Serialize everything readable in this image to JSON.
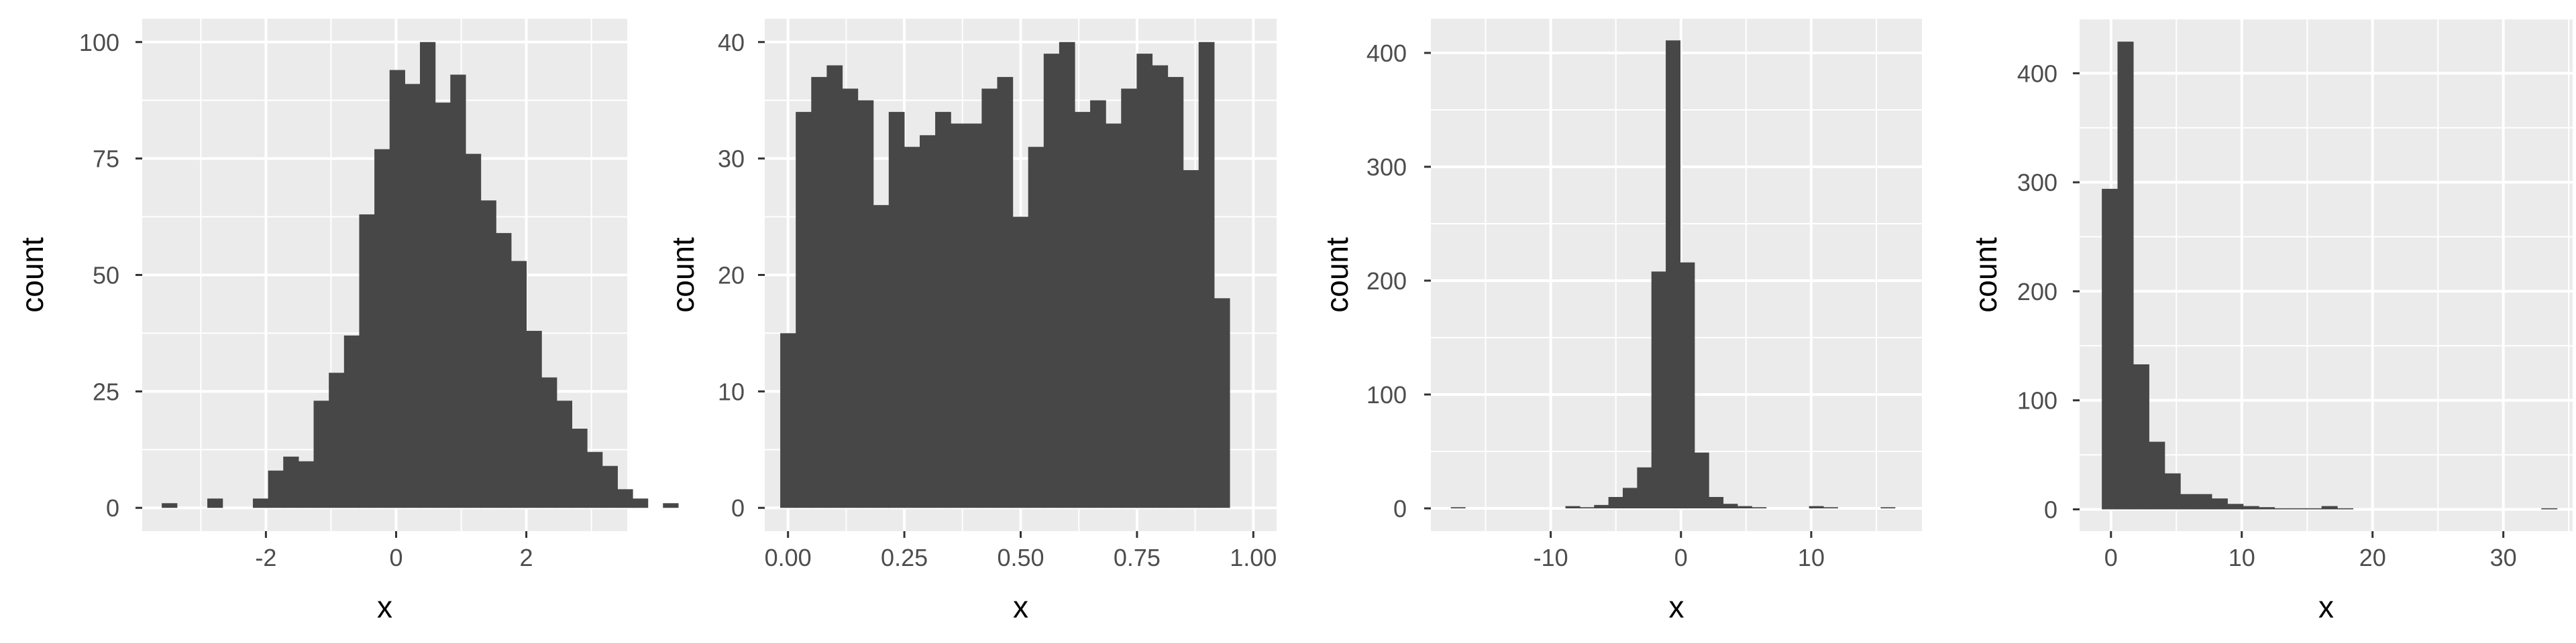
{
  "chart_data": [
    {
      "type": "bar",
      "title": "",
      "xlabel": "x",
      "ylabel": "count",
      "xlim": [
        -3.9,
        3.55
      ],
      "ylim": [
        -5,
        105
      ],
      "xticks": [
        -2,
        0,
        2
      ],
      "xtick_labels": [
        "-2",
        "0",
        "2"
      ],
      "yticks": [
        0,
        25,
        50,
        75,
        100
      ],
      "ytick_labels": [
        "0",
        "25",
        "50",
        "75",
        "100"
      ],
      "bins": {
        "start": -3.6,
        "width": 0.2333
      },
      "values": [
        1,
        0,
        0,
        2,
        0,
        0,
        2,
        8,
        11,
        10,
        23,
        29,
        37,
        63,
        77,
        94,
        91,
        100,
        87,
        93,
        76,
        66,
        59,
        53,
        38,
        28,
        23,
        17,
        12,
        9,
        4,
        2,
        0,
        1
      ],
      "grid": true,
      "panel_background": "#ebebeb",
      "bar_color": "#474747"
    },
    {
      "type": "bar",
      "title": "",
      "xlabel": "x",
      "ylabel": "count",
      "xlim": [
        -0.05,
        1.05
      ],
      "ylim": [
        -2,
        42
      ],
      "xticks": [
        0,
        0.25,
        0.5,
        0.75,
        1
      ],
      "xtick_labels": [
        "0.00",
        "0.25",
        "0.50",
        "0.75",
        "1.00"
      ],
      "yticks": [
        0,
        10,
        20,
        30,
        40
      ],
      "ytick_labels": [
        "0",
        "10",
        "20",
        "30",
        "40"
      ],
      "bins": {
        "start": -0.0167,
        "width": 0.0333
      },
      "values": [
        15,
        34,
        37,
        38,
        36,
        35,
        26,
        34,
        31,
        32,
        34,
        33,
        33,
        36,
        37,
        25,
        31,
        39,
        40,
        34,
        35,
        33,
        36,
        39,
        38,
        37,
        29,
        40,
        18
      ],
      "grid": true,
      "panel_background": "#ebebeb",
      "bar_color": "#474747"
    },
    {
      "type": "bar",
      "title": "",
      "xlabel": "x",
      "ylabel": "count",
      "xlim": [
        -19.2,
        18.5
      ],
      "ylim": [
        -20,
        430
      ],
      "xticks": [
        -10,
        0,
        10
      ],
      "xtick_labels": [
        "-10",
        "0",
        "10"
      ],
      "yticks": [
        0,
        100,
        200,
        300,
        400
      ],
      "ytick_labels": [
        "0",
        "100",
        "200",
        "300",
        "400"
      ],
      "bins": {
        "start": -17.67,
        "width": 1.1
      },
      "values": [
        1,
        0,
        0,
        0,
        0,
        0,
        0,
        0,
        2,
        1,
        3,
        10,
        18,
        36,
        208,
        411,
        216,
        49,
        10,
        4,
        2,
        1,
        0,
        0,
        0,
        2,
        1,
        0,
        0,
        0,
        1
      ],
      "grid": true,
      "panel_background": "#ebebeb",
      "bar_color": "#474747"
    },
    {
      "type": "bar",
      "title": "",
      "xlabel": "x",
      "ylabel": "count",
      "xlim": [
        -2.4,
        35.3
      ],
      "ylim": [
        -20,
        450
      ],
      "xticks": [
        0,
        10,
        20,
        30
      ],
      "xtick_labels": [
        "0",
        "10",
        "20",
        "30"
      ],
      "yticks": [
        0,
        100,
        200,
        300,
        400
      ],
      "ytick_labels": [
        "0",
        "100",
        "200",
        "300",
        "400"
      ],
      "bins": {
        "start": -0.7,
        "width": 1.2
      },
      "values": [
        294,
        429,
        133,
        62,
        33,
        14,
        14,
        10,
        5,
        3,
        2,
        1,
        1,
        1,
        3,
        1,
        0,
        0,
        0,
        0,
        0,
        0,
        0,
        0,
        0,
        0,
        0,
        0,
        1
      ],
      "grid": true,
      "panel_background": "#ebebeb",
      "bar_color": "#474747"
    }
  ]
}
